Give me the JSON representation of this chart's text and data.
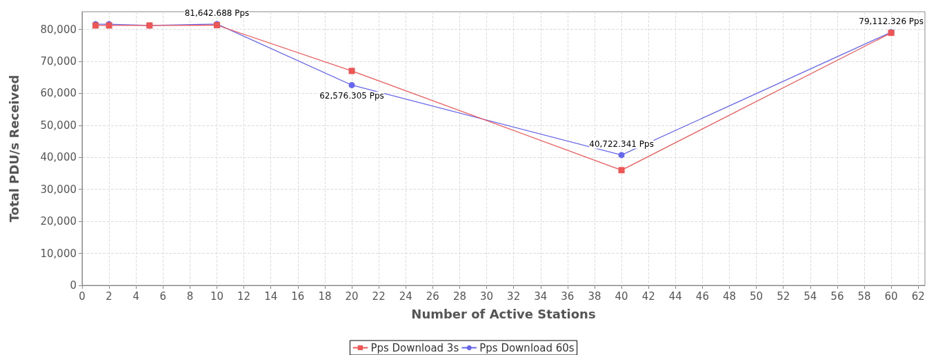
{
  "chart_data": {
    "type": "line",
    "xlabel": "Number of Active Stations",
    "ylabel": "Total PDU/s Received",
    "x": [
      1,
      2,
      5,
      10,
      20,
      40,
      60
    ],
    "series": [
      {
        "name": "Pps Download 3s",
        "color": "#ee5555",
        "marker": "square",
        "values": [
          81200,
          81200,
          81200,
          81300,
          67000,
          36000,
          78900
        ]
      },
      {
        "name": "Pps Download 60s",
        "color": "#6666ee",
        "marker": "circle",
        "values": [
          81600,
          81600,
          81200,
          81642.688,
          62576.305,
          40722.341,
          79112.326
        ],
        "value_labels": [
          null,
          null,
          null,
          "81,642.688 Pps",
          "62,576.305 Pps",
          "40,722.341 Pps",
          "79,112.326 Pps"
        ]
      }
    ],
    "xlim": [
      0,
      62.5
    ],
    "xticks": [
      0,
      2,
      4,
      6,
      8,
      10,
      12,
      14,
      16,
      18,
      20,
      22,
      24,
      26,
      28,
      30,
      32,
      34,
      36,
      38,
      40,
      42,
      44,
      46,
      48,
      50,
      52,
      54,
      56,
      58,
      60,
      62
    ],
    "ylim": [
      0,
      85500
    ],
    "yticks": [
      {
        "value": 0,
        "label": "0"
      },
      {
        "value": 10000,
        "label": "10,000"
      },
      {
        "value": 20000,
        "label": "20,000"
      },
      {
        "value": 30000,
        "label": "30,000"
      },
      {
        "value": 40000,
        "label": "40,000"
      },
      {
        "value": 50000,
        "label": "50,000"
      },
      {
        "value": 60000,
        "label": "60,000"
      },
      {
        "value": 70000,
        "label": "70,000"
      },
      {
        "value": 80000,
        "label": "80,000"
      }
    ],
    "grid": true,
    "legend": "bottom",
    "line_style": "solid"
  }
}
